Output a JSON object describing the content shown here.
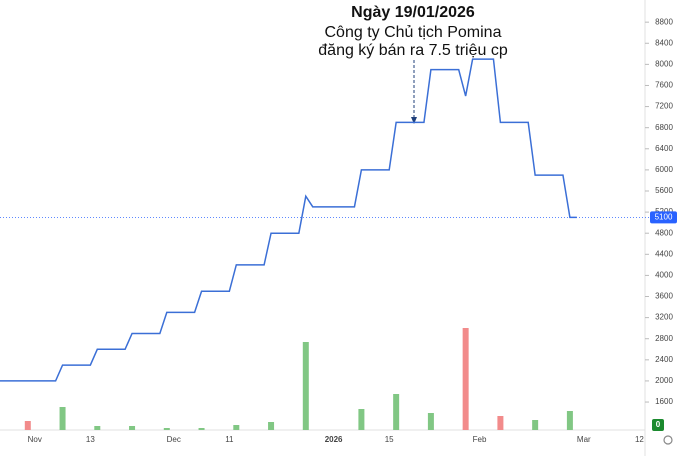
{
  "chart_data": {
    "type": "line",
    "annotation": {
      "title": "Ngày 19/01/2026",
      "lines": [
        "Công ty Chủ tịch Pomina",
        "đăng ký bán ra 7.5 triệu cp"
      ]
    },
    "categories": [
      null,
      null,
      null,
      null,
      null,
      "Nov",
      null,
      null,
      null,
      null,
      null,
      null,
      null,
      "13",
      null,
      null,
      null,
      null,
      null,
      null,
      null,
      null,
      null,
      null,
      null,
      "Dec",
      null,
      null,
      null,
      null,
      null,
      null,
      null,
      "11",
      null,
      null,
      null,
      null,
      null,
      null,
      null,
      null,
      null,
      null,
      null,
      null,
      null,
      null,
      "2026",
      null,
      null,
      null,
      null,
      null,
      null,
      null,
      "15",
      null,
      null,
      null,
      null,
      null,
      null,
      null,
      null,
      null,
      null,
      null,
      null,
      "Feb",
      null,
      null,
      null,
      null,
      null,
      null,
      null,
      null,
      null,
      null,
      null,
      null,
      null,
      null,
      "Mar",
      null,
      null,
      null,
      null,
      null,
      null,
      null,
      "12"
    ],
    "series": [
      {
        "color": "#3b6fd6",
        "values": [
          2000,
          2000,
          2000,
          2000,
          2000,
          2000,
          2000,
          2000,
          2000,
          2300,
          2300,
          2300,
          2300,
          2300,
          2600,
          2600,
          2600,
          2600,
          2600,
          2900,
          2900,
          2900,
          2900,
          2900,
          3300,
          3300,
          3300,
          3300,
          3300,
          3700,
          3700,
          3700,
          3700,
          3700,
          4200,
          4200,
          4200,
          4200,
          4200,
          4800,
          4800,
          4800,
          4800,
          4800,
          5500,
          5300,
          5300,
          5300,
          5300,
          5300,
          5300,
          5300,
          6000,
          6000,
          6000,
          6000,
          6000,
          6900,
          6900,
          6900,
          6900,
          6900,
          7900,
          7900,
          7900,
          7900,
          7900,
          7400,
          8100,
          8100,
          8100,
          8100,
          6900,
          6900,
          6900,
          6900,
          6900,
          5900,
          5900,
          5900,
          5900,
          5900,
          5100,
          5100,
          null,
          null,
          null,
          null,
          null,
          null,
          null,
          null,
          null
        ]
      },
      {
        "type": "bar",
        "axis": "y2",
        "values": [
          null,
          null,
          null,
          null,
          9,
          null,
          null,
          null,
          null,
          23,
          null,
          null,
          null,
          null,
          4,
          null,
          null,
          null,
          null,
          4,
          null,
          null,
          null,
          null,
          2,
          null,
          null,
          null,
          null,
          2,
          null,
          null,
          null,
          null,
          5,
          null,
          null,
          null,
          null,
          8,
          null,
          null,
          null,
          null,
          88,
          null,
          null,
          null,
          null,
          null,
          null,
          null,
          21,
          null,
          null,
          null,
          null,
          36,
          null,
          null,
          null,
          null,
          17,
          null,
          null,
          null,
          null,
          102,
          null,
          null,
          null,
          null,
          14,
          null,
          null,
          null,
          null,
          10,
          null,
          null,
          null,
          null,
          19,
          null,
          null,
          null,
          null,
          null,
          null,
          null,
          null,
          null,
          null
        ],
        "colors": [
          null,
          null,
          null,
          null,
          "#f28b8b",
          null,
          null,
          null,
          null,
          "#81c784",
          null,
          null,
          null,
          null,
          "#81c784",
          null,
          null,
          null,
          null,
          "#81c784",
          null,
          null,
          null,
          null,
          "#81c784",
          null,
          null,
          null,
          null,
          "#81c784",
          null,
          null,
          null,
          null,
          "#81c784",
          null,
          null,
          null,
          null,
          "#81c784",
          null,
          null,
          null,
          null,
          "#81c784",
          null,
          null,
          null,
          null,
          null,
          null,
          null,
          "#81c784",
          null,
          null,
          null,
          null,
          "#81c784",
          null,
          null,
          null,
          null,
          "#81c784",
          null,
          null,
          null,
          null,
          "#f28b8b",
          null,
          null,
          null,
          null,
          "#f28b8b",
          null,
          null,
          null,
          null,
          "#81c784",
          null,
          null,
          null,
          null,
          "#81c784",
          null,
          null,
          null,
          null,
          null,
          null,
          null,
          null,
          null,
          null
        ]
      }
    ],
    "last_price": 5100,
    "last_price_color": "#2962ff",
    "last_volume_label": "0",
    "last_volume_color": "#1b8a2e",
    "ylim": [
      1070,
      9220
    ],
    "yticks": [
      1600,
      2000,
      2400,
      2800,
      3200,
      3600,
      4000,
      4400,
      4800,
      5200,
      5600,
      6000,
      6400,
      6800,
      7200,
      7600,
      8000,
      8400,
      8800
    ],
    "y2lim": [
      0,
      430
    ]
  }
}
